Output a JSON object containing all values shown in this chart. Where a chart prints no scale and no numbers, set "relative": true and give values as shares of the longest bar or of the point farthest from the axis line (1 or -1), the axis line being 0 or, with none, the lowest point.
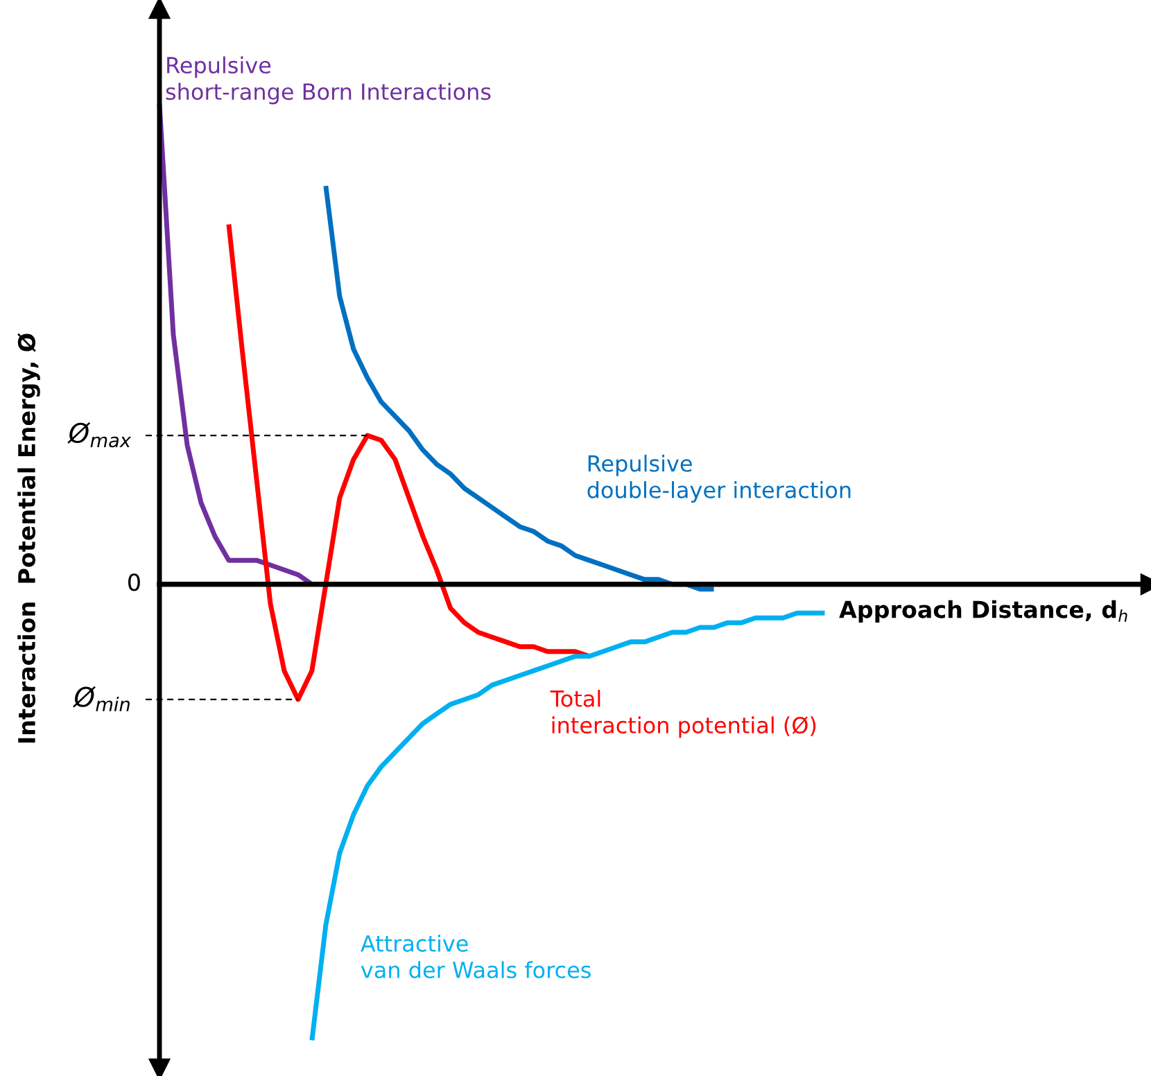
{
  "chart_data": {
    "type": "line",
    "relative": true,
    "xlabel": "Approach Distance, d$_{h}$",
    "ylabel": "Interaction  Potential Energy, Ø",
    "categories": [
      null,
      null,
      null,
      null,
      null,
      null,
      null,
      null,
      null,
      null,
      null,
      null,
      null,
      null,
      null,
      null,
      null,
      null,
      null,
      null,
      null,
      null,
      null,
      null,
      null,
      null,
      null,
      null,
      null,
      null,
      null,
      null,
      null,
      null,
      null,
      null,
      null,
      null,
      null,
      null,
      null,
      null,
      null,
      null,
      null,
      null,
      null,
      null,
      null
    ],
    "series": [
      {
        "name": "Repulsive\nshort-range Born Interactions",
        "color": "#7030a0",
        "values": [
          1.0,
          0.52,
          0.29,
          0.17,
          0.1,
          0.05,
          0.05,
          0.05,
          0.04,
          0.03,
          0.02,
          0.0,
          null,
          null,
          null,
          null,
          null,
          null,
          null,
          null,
          null,
          null,
          null,
          null,
          null,
          null,
          null,
          null,
          null,
          null,
          null,
          null,
          null,
          null,
          null,
          null,
          null,
          null,
          null,
          null,
          null,
          null,
          null,
          null,
          null,
          null,
          null,
          null,
          null
        ]
      },
      {
        "name": "Total\ninteraction potential (Ø)",
        "color": "#ff0000",
        "values": [
          null,
          null,
          null,
          null,
          null,
          0.75,
          0.48,
          0.22,
          -0.04,
          -0.18,
          -0.24,
          -0.18,
          0.0,
          0.18,
          0.26,
          0.31,
          0.3,
          0.26,
          0.18,
          0.1,
          0.03,
          -0.05,
          -0.08,
          -0.1,
          -0.11,
          -0.12,
          -0.13,
          -0.13,
          -0.14,
          -0.14,
          -0.14,
          -0.15,
          null,
          null,
          null,
          null,
          null,
          null,
          null,
          null,
          null,
          null,
          null,
          null,
          null,
          null,
          null,
          null,
          null
        ]
      },
      {
        "name": "Repulsive\ndouble-layer interaction",
        "color": "#0070c0",
        "values": [
          null,
          null,
          null,
          null,
          null,
          null,
          null,
          null,
          null,
          null,
          null,
          null,
          0.83,
          0.6,
          0.49,
          0.43,
          0.38,
          0.35,
          0.32,
          0.28,
          0.25,
          0.23,
          0.2,
          0.18,
          0.16,
          0.14,
          0.12,
          0.11,
          0.09,
          0.08,
          0.06,
          0.05,
          0.04,
          0.03,
          0.02,
          0.01,
          0.01,
          0.0,
          0.0,
          -0.01,
          -0.01,
          null,
          null,
          null,
          null,
          null,
          null,
          null,
          null
        ]
      },
      {
        "name": "Attractive\nvan der Waals forces",
        "color": "#00b0f0",
        "values": [
          null,
          null,
          null,
          null,
          null,
          null,
          null,
          null,
          null,
          null,
          null,
          -0.95,
          -0.71,
          -0.56,
          -0.48,
          -0.42,
          -0.38,
          -0.35,
          -0.32,
          -0.29,
          -0.27,
          -0.25,
          -0.24,
          -0.23,
          -0.21,
          -0.2,
          -0.19,
          -0.18,
          -0.17,
          -0.16,
          -0.15,
          -0.15,
          -0.14,
          -0.13,
          -0.12,
          -0.12,
          -0.11,
          -0.1,
          -0.1,
          -0.09,
          -0.09,
          -0.08,
          -0.08,
          -0.07,
          -0.07,
          -0.07,
          -0.06,
          -0.06,
          -0.06
        ]
      }
    ],
    "ref_lines": [
      {
        "axis": "y",
        "value": 0,
        "label": "0",
        "color": "#000000",
        "line_style": "solid"
      },
      {
        "axis": "y",
        "value": 0.31,
        "label": "Ø$_{max}$",
        "color": "#000000",
        "line_style": "dashed"
      },
      {
        "axis": "y",
        "value": -0.24,
        "label": "Ø$_{min}$",
        "color": "#000000",
        "line_style": "dashed"
      }
    ]
  }
}
